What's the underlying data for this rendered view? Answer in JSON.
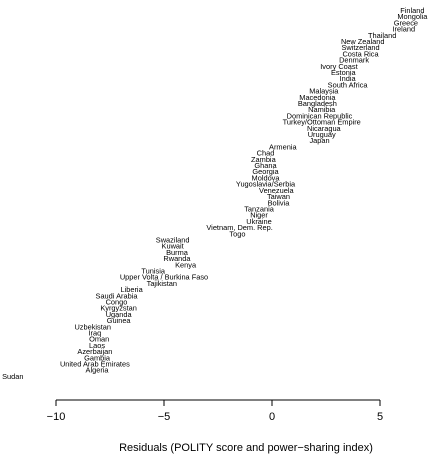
{
  "chart_data": {
    "type": "scatter",
    "title": "",
    "xlabel": "Residuals (POLITY score and power−sharing index)",
    "ylabel": "",
    "xlim": [
      -11,
      6.1
    ],
    "x_ticks": [
      -10,
      -5,
      0,
      5
    ],
    "x_tick_labels": [
      "−10",
      "−5",
      "0",
      "5"
    ],
    "grid": false,
    "points": [
      {
        "label": "Finland",
        "x": 6.5
      },
      {
        "label": "Mongolia",
        "x": 6.5
      },
      {
        "label": "Greece",
        "x": 6.2
      },
      {
        "label": "Ireland",
        "x": 6.1
      },
      {
        "label": "Thailand",
        "x": 5.1
      },
      {
        "label": "New Zealand",
        "x": 4.2
      },
      {
        "label": "Switzerland",
        "x": 4.1
      },
      {
        "label": "Costa Rica",
        "x": 4.1
      },
      {
        "label": "Denmark",
        "x": 3.8
      },
      {
        "label": "Ivory Coast",
        "x": 3.1
      },
      {
        "label": "Estonia",
        "x": 3.3
      },
      {
        "label": "India",
        "x": 3.5
      },
      {
        "label": "South Africa",
        "x": 3.5
      },
      {
        "label": "Malaysia",
        "x": 2.4
      },
      {
        "label": "Macedonia",
        "x": 2.1
      },
      {
        "label": "Bangladesh",
        "x": 2.1
      },
      {
        "label": "Namibia",
        "x": 2.3
      },
      {
        "label": "Dominican Republic",
        "x": 2.2
      },
      {
        "label": "Turkey/Ottoman Empire",
        "x": 2.3
      },
      {
        "label": "Nicaragua",
        "x": 2.4
      },
      {
        "label": "Uruguay",
        "x": 2.3
      },
      {
        "label": "Japan",
        "x": 2.2
      },
      {
        "label": "Armenia",
        "x": 0.5
      },
      {
        "label": "Chad",
        "x": -0.3
      },
      {
        "label": "Zambia",
        "x": -0.4
      },
      {
        "label": "Ghana",
        "x": -0.3
      },
      {
        "label": "Georgia",
        "x": -0.3
      },
      {
        "label": "Moldova",
        "x": -0.3
      },
      {
        "label": "Yugoslavia/Serbia",
        "x": -0.3
      },
      {
        "label": "Venezuela",
        "x": 0.2
      },
      {
        "label": "Taiwan",
        "x": 0.3
      },
      {
        "label": "Bolivia",
        "x": 0.3
      },
      {
        "label": "Tanzania",
        "x": -0.6
      },
      {
        "label": "Niger",
        "x": -0.6
      },
      {
        "label": "Ukraine",
        "x": -0.6
      },
      {
        "label": "Vietnam, Dem. Rep.",
        "x": -1.5
      },
      {
        "label": "Togo",
        "x": -1.6
      },
      {
        "label": "Swaziland",
        "x": -4.6
      },
      {
        "label": "Kuwait",
        "x": -4.6
      },
      {
        "label": "Burma",
        "x": -4.4
      },
      {
        "label": "Rwanda",
        "x": -4.4
      },
      {
        "label": "Kenya",
        "x": -4.0
      },
      {
        "label": "Tunisia",
        "x": -5.5
      },
      {
        "label": "Upper Volta / Burkina Faso",
        "x": -5.0
      },
      {
        "label": "Tajikistan",
        "x": -5.1
      },
      {
        "label": "Liberia",
        "x": -6.5
      },
      {
        "label": "Saudi Arabia",
        "x": -7.2
      },
      {
        "label": "Congo",
        "x": -7.2
      },
      {
        "label": "Kyrgyzstan",
        "x": -7.1
      },
      {
        "label": "Uganda",
        "x": -7.1
      },
      {
        "label": "Guinea",
        "x": -7.1
      },
      {
        "label": "Uzbekistan",
        "x": -8.3
      },
      {
        "label": "Iraq",
        "x": -8.2
      },
      {
        "label": "Oman",
        "x": -8.0
      },
      {
        "label": "Laos",
        "x": -8.1
      },
      {
        "label": "Azerbaijan",
        "x": -8.2
      },
      {
        "label": "Gambia",
        "x": -8.1
      },
      {
        "label": "United Arab Emirates",
        "x": -8.2
      },
      {
        "label": "Algeria",
        "x": -8.1
      },
      {
        "label": "Sudan",
        "x": -12.0
      }
    ]
  }
}
